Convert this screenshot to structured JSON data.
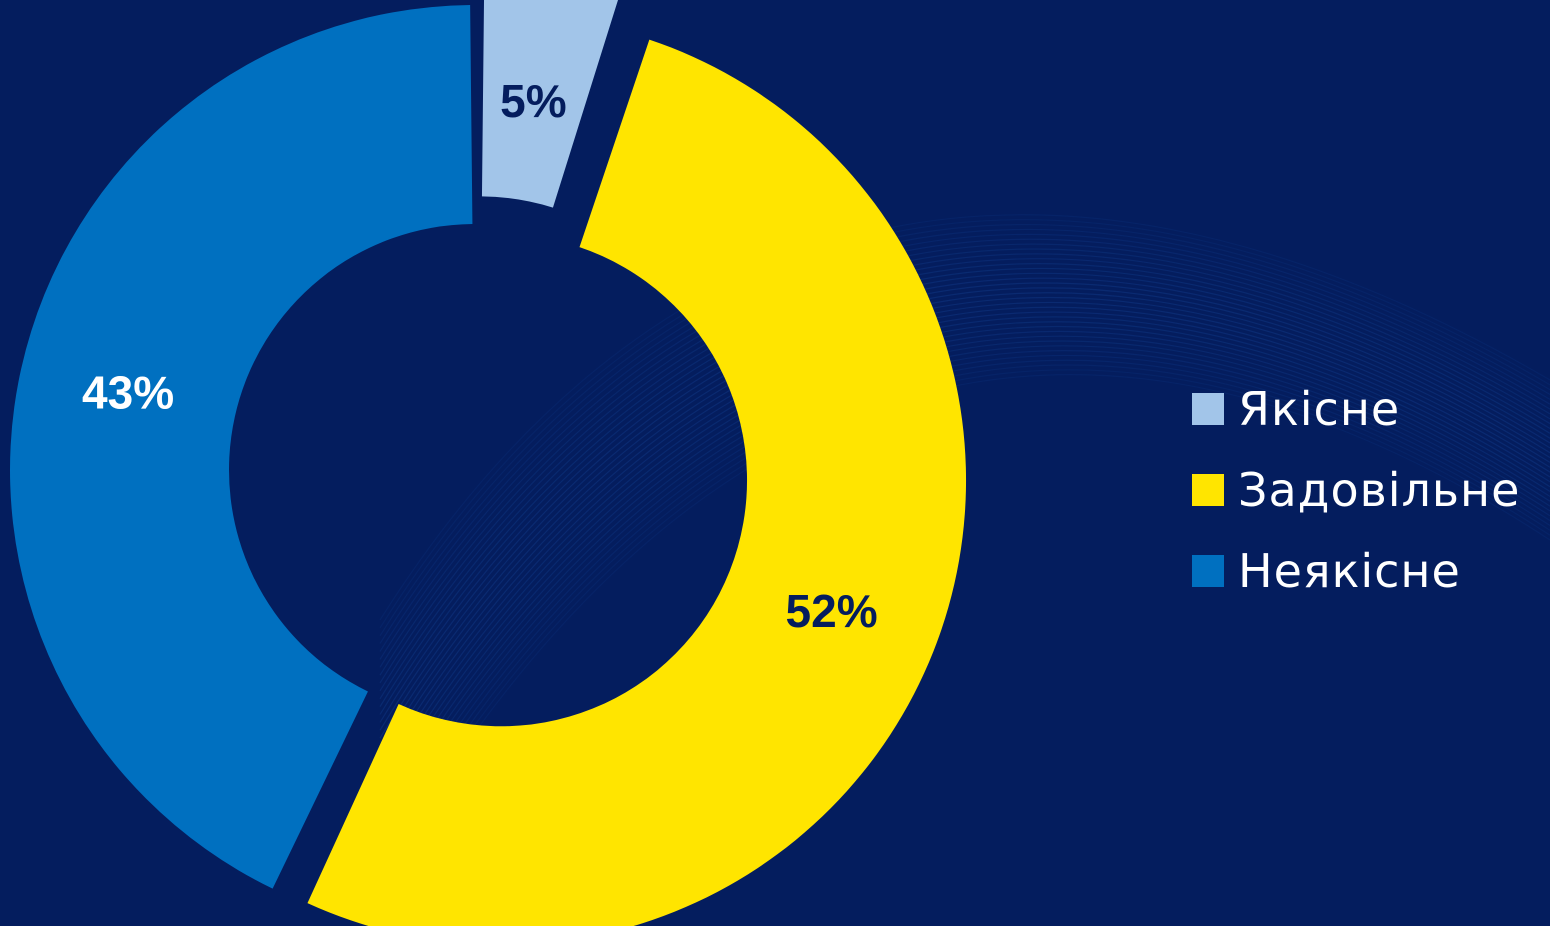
{
  "chart_data": {
    "type": "pie",
    "variant": "donut",
    "categories": [
      "Якісне",
      "Задовільне",
      "Неякісне"
    ],
    "values": [
      5,
      52,
      43
    ],
    "labels": [
      "5%",
      "52%",
      "43%"
    ],
    "colors": [
      "#a2c5e9",
      "#ffe500",
      "#0070c0"
    ],
    "label_colors": [
      "#041d5e",
      "#041d5e",
      "#ffffff"
    ],
    "exploded": [
      true,
      true,
      false
    ],
    "title": "",
    "legend": "right"
  },
  "legend": {
    "items": [
      {
        "label": "Якісне",
        "color": "#a2c5e9"
      },
      {
        "label": "Задовільне",
        "color": "#ffe500"
      },
      {
        "label": "Неякісне",
        "color": "#0070c0"
      }
    ]
  },
  "theme": {
    "background": "#041d5e",
    "wave_color": "#1f5bb8"
  }
}
